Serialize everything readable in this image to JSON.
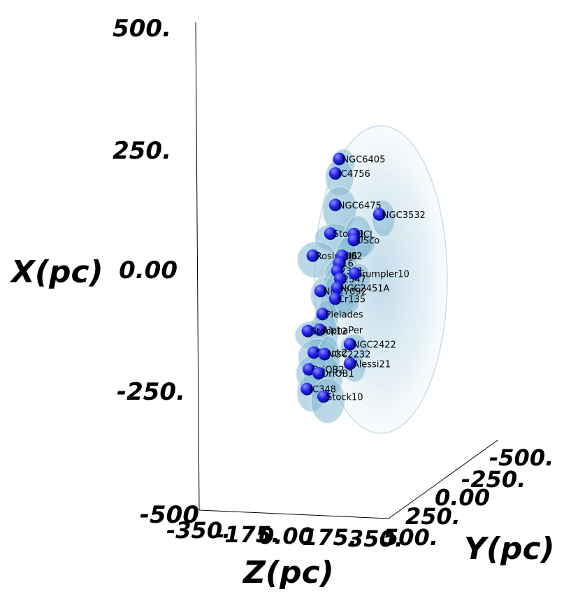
{
  "chart_data": {
    "type": "scatter",
    "title": "",
    "projection": "3d",
    "axes": {
      "x": {
        "label": "X(pc)",
        "range": [
          -500,
          500
        ],
        "ticks": [
          "500.",
          "250.",
          "0.00",
          "-250.",
          "-500"
        ]
      },
      "z": {
        "label": "Z(pc)",
        "range": [
          -350,
          350
        ],
        "ticks": [
          "-350.",
          "-175.",
          "0.00",
          "175.",
          "350."
        ]
      },
      "y": {
        "label": "Y(pc)",
        "range": [
          -500,
          500
        ],
        "ticks": [
          "-500.",
          "-250.",
          "0.00",
          "250.",
          "500."
        ]
      }
    },
    "background": "#ffffff",
    "marker_color": "#1a1aff",
    "cloud_color": "#a9cde0",
    "clusters": [
      {
        "label": "NGC6405",
        "x": 420,
        "z": 30,
        "y": -80
      },
      {
        "label": "IC4756",
        "x": 365,
        "z": 10,
        "y": -60
      },
      {
        "label": "NGC6475",
        "x": 240,
        "z": 30,
        "y": -40
      },
      {
        "label": "Stock1",
        "x": 120,
        "z": -30,
        "y": -50
      },
      {
        "label": "NGC3532",
        "x": 100,
        "z": 40,
        "y": -480
      },
      {
        "label": "UCL",
        "x": 70,
        "z": 0,
        "y": -260
      },
      {
        "label": "USco",
        "x": 50,
        "z": 20,
        "y": -240
      },
      {
        "label": "Roslund6",
        "x": 50,
        "z": -120,
        "y": 40
      },
      {
        "label": "002",
        "x": 10,
        "z": 10,
        "y": -130
      },
      {
        "label": "16",
        "x": -10,
        "z": 20,
        "y": -90
      },
      {
        "label": "2391",
        "x": -40,
        "z": 10,
        "y": -80
      },
      {
        "label": "2547",
        "x": -80,
        "z": 10,
        "y": -110
      },
      {
        "label": "Trumpler10",
        "x": -90,
        "z": 20,
        "y": -250
      },
      {
        "label": "NGC7092",
        "x": -100,
        "z": -60,
        "y": 20
      },
      {
        "label": "NGC2451A",
        "x": -110,
        "z": 10,
        "y": -80
      },
      {
        "label": "Cr135",
        "x": -150,
        "z": 10,
        "y": -60
      },
      {
        "label": "Pleiades",
        "x": -190,
        "z": -20,
        "y": 40
      },
      {
        "label": "AlphaPer",
        "x": -250,
        "z": -30,
        "y": 60
      },
      {
        "label": "Stock12",
        "x": -260,
        "z": -170,
        "y": 40
      },
      {
        "label": "Stock2",
        "x": -330,
        "z": -30,
        "y": 120
      },
      {
        "label": "NGC2232",
        "x": -350,
        "z": 20,
        "y": 60
      },
      {
        "label": "NGC2422",
        "x": -360,
        "z": 60,
        "y": -160
      },
      {
        "label": "OriOB2",
        "x": -390,
        "z": -40,
        "y": 160
      },
      {
        "label": "OriOB1",
        "x": -420,
        "z": 0,
        "y": 100
      },
      {
        "label": "Alessi21",
        "x": -440,
        "z": 60,
        "y": -160
      },
      {
        "label": "IC348",
        "x": -480,
        "z": -100,
        "y": 120
      },
      {
        "label": "Stock10",
        "x": -520,
        "z": 30,
        "y": 80
      }
    ]
  }
}
